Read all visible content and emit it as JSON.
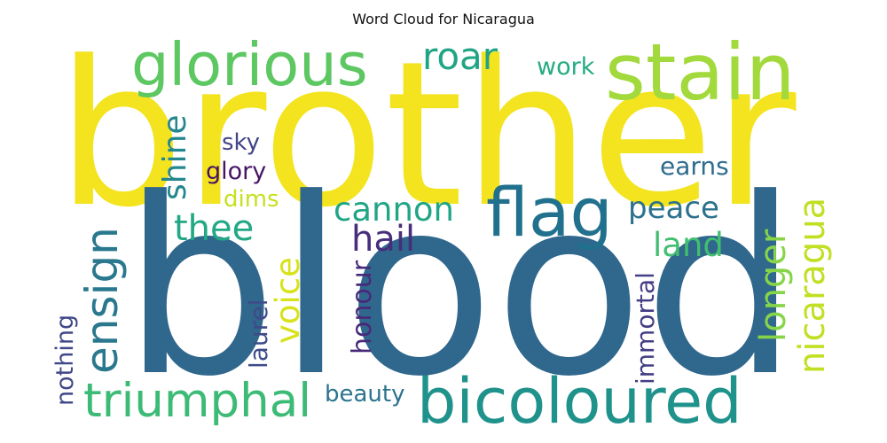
{
  "title": "Word Cloud for Nicaragua",
  "words": [
    {
      "text": "brother",
      "color": "#f3e41f"
    },
    {
      "text": "blood",
      "color": "#30678d"
    },
    {
      "text": "stain",
      "color": "#a2d93c"
    },
    {
      "text": "glorious",
      "color": "#5dc762"
    },
    {
      "text": "roar",
      "color": "#20a486"
    },
    {
      "text": "work",
      "color": "#25ab82"
    },
    {
      "text": "flag",
      "color": "#21718e"
    },
    {
      "text": "bicoloured",
      "color": "#20928c"
    },
    {
      "text": "triumphal",
      "color": "#3bbb75"
    },
    {
      "text": "ensign",
      "color": "#2a788e"
    },
    {
      "text": "shine",
      "color": "#24868e"
    },
    {
      "text": "sky",
      "color": "#414487"
    },
    {
      "text": "glory",
      "color": "#471365"
    },
    {
      "text": "dims",
      "color": "#c8e020"
    },
    {
      "text": "cannon",
      "color": "#21a685"
    },
    {
      "text": "thee",
      "color": "#22a884"
    },
    {
      "text": "hail",
      "color": "#472e7c"
    },
    {
      "text": "peace",
      "color": "#2c728e"
    },
    {
      "text": "land",
      "color": "#42be71"
    },
    {
      "text": "earns",
      "color": "#2f6c8e"
    },
    {
      "text": "longer",
      "color": "#86d549"
    },
    {
      "text": "nicaragua",
      "color": "#c2df23"
    },
    {
      "text": "voice",
      "color": "#d8e219"
    },
    {
      "text": "laurel",
      "color": "#3e4a89"
    },
    {
      "text": "honour",
      "color": "#482979"
    },
    {
      "text": "immortal",
      "color": "#433e85"
    },
    {
      "text": "nothing",
      "color": "#3f4788"
    },
    {
      "text": "beauty",
      "color": "#2c738e"
    }
  ]
}
